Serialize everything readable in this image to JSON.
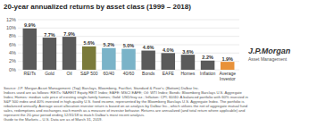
{
  "chart_data": {
    "type": "bar",
    "title": "20-year annualized returns by asset class (1999 – 2018)",
    "categories": [
      "REITs",
      "Gold",
      "Oil",
      "S&P 500",
      "60/40",
      "40/60",
      "Bonds",
      "EAFE",
      "Homes",
      "Inflation",
      "Average\nInvestor"
    ],
    "values": [
      9.9,
      7.7,
      7.9,
      5.6,
      5.2,
      5.0,
      4.6,
      4.0,
      3.6,
      2.2,
      1.9
    ],
    "value_labels": [
      "9.9%",
      "7.7%",
      "7.9%",
      "5.6%",
      "5.2%",
      "5.0%",
      "4.6%",
      "4.0%",
      "3.6%",
      "2.2%",
      "1.9%"
    ],
    "colors": [
      "#5a5a5a",
      "#5a5a5a",
      "#5a5a5a",
      "#7a7a3a",
      "#7ab3c8",
      "#7ab3c8",
      "#5a5a5a",
      "#5a5a5a",
      "#5a5a5a",
      "#5a5a5a",
      "#e8923a"
    ],
    "ylim": [
      0,
      12
    ],
    "yticks": [
      {
        "value": 0,
        "label": "0%"
      },
      {
        "value": 2,
        "label": "2%"
      },
      {
        "value": 4,
        "label": "4%"
      },
      {
        "value": 6,
        "label": "6%"
      },
      {
        "value": 8,
        "label": "8%"
      },
      {
        "value": 10,
        "label": "10%"
      },
      {
        "value": 12,
        "label": "12%"
      }
    ],
    "grid": true,
    "data_labels": true,
    "annotations": [
      "Source: J.P. Morgan Asset Management; (Top) Barclays, Bloomberg, FactSet, Standard & Poor's; (Bottom) Dalbar Inc.\nIndices used are as follows: REITs: NAREIT Equity REIT Index; EAFE: MSCI EAFE; Oil: WTI Index; Bonds: Bloomberg Barclays U.S. Aggregate\nIndex; Homes: median sale price of existing single-family homes; Gold: USD/troy oz.; Inflation: CPI; 60/40: A balanced portfolio with 60% invested in\nS&P 500 index and 40% invested in high-quality U.S. fixed income, represented by the Bloomberg Barclays U.S. Aggregate Index. The portfolio is\nrebalanced annually. Average asset allocation investor return is based on an analysis by Dalbar Inc., which utilizes the net of aggregate mutual fund\nsales, redemptions and exchanges each month as a measure of investor behavior. Returns are annualized (and total return where applicable) and\nrepresent the 20-year period ending 12/31/18 to match Dalbar's most recent analysis.\nGuide to the Markets – U.S. Data are as of March 31, 2019.",
      "J.P.Morgan",
      "Asset Management"
    ]
  }
}
